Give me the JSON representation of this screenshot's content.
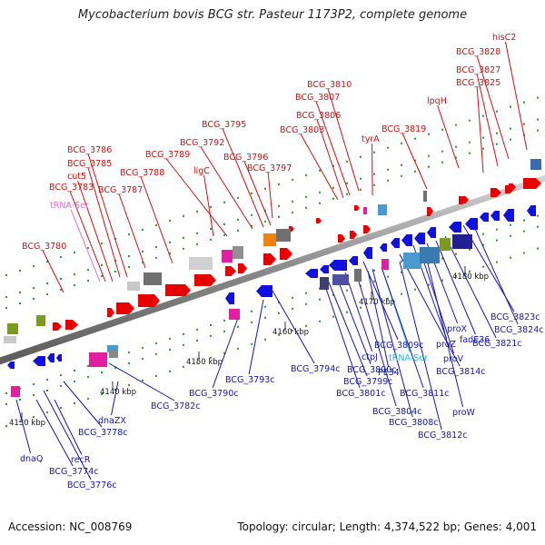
{
  "title": "Mycobacterium bovis BCG str. Pasteur 1173P2, complete genome",
  "footer": {
    "accession": "Accession: NC_008769",
    "topology": "Topology: circular; Length: 4,374,522 bp; Genes: 4,001"
  },
  "colors": {
    "forward_gene": "#e80000",
    "reverse_gene": "#1010e0",
    "backbone": "#808080",
    "top_label": "#d01010",
    "bottom_label": "#1515b0",
    "trna_top_label": "#e070c8",
    "trna_bottom_label": "#20b8e8",
    "tick_mark": "#168a16"
  },
  "scale_ticks": [
    "4130 kbp",
    "4140 kbp",
    "4150 kbp",
    "4160 kbp",
    "4170 kbp",
    "4180 kbp"
  ],
  "top_labels": [
    {
      "text": "hisC2"
    },
    {
      "text": "BCG_3828"
    },
    {
      "text": "BCG_3827"
    },
    {
      "text": "BCG_3825"
    },
    {
      "text": "lpqH"
    },
    {
      "text": "BCG_3819"
    },
    {
      "text": "BCG_3810"
    },
    {
      "text": "BCG_3807"
    },
    {
      "text": "BCG_3806"
    },
    {
      "text": "BCG_3803"
    },
    {
      "text": "tyrA"
    },
    {
      "text": "BCG_3795"
    },
    {
      "text": "BCG_3792"
    },
    {
      "text": "BCG_3796"
    },
    {
      "text": "BCG_3797"
    },
    {
      "text": "BCG_3789"
    },
    {
      "text": "ligC"
    },
    {
      "text": "BCG_3786"
    },
    {
      "text": "BCG_3785"
    },
    {
      "text": "cut5"
    },
    {
      "text": "BCG_3788"
    },
    {
      "text": "BCG_3783"
    },
    {
      "text": "BCG_3787"
    },
    {
      "text": "tRNA-Ser"
    },
    {
      "text": "BCG_3780"
    }
  ],
  "bottom_labels": [
    {
      "text": "BCG_3823c"
    },
    {
      "text": "BCG_3824c"
    },
    {
      "text": "BCG_3821c"
    },
    {
      "text": "fadE36"
    },
    {
      "text": "proX"
    },
    {
      "text": "proZ"
    },
    {
      "text": "proV"
    },
    {
      "text": "BCG_3814c"
    },
    {
      "text": "BCG_3809c"
    },
    {
      "text": "tRNA-Ser"
    },
    {
      "text": "ctpJ"
    },
    {
      "text": "BCG_3800c"
    },
    {
      "text": "BCG_3799c"
    },
    {
      "text": "PE34"
    },
    {
      "text": "BCG_3811c"
    },
    {
      "text": "BCG_3801c"
    },
    {
      "text": "proW"
    },
    {
      "text": "BCG_3804c"
    },
    {
      "text": "BCG_3808c"
    },
    {
      "text": "BCG_3812c"
    },
    {
      "text": "BCG_3794c"
    },
    {
      "text": "BCG_3793c"
    },
    {
      "text": "BCG_3790c"
    },
    {
      "text": "BCG_3782c"
    },
    {
      "text": "dnaZX"
    },
    {
      "text": "BCG_3778c"
    },
    {
      "text": "dnaQ"
    },
    {
      "text": "recR"
    },
    {
      "text": "BCG_3774c"
    },
    {
      "text": "BCG_3776c"
    }
  ]
}
